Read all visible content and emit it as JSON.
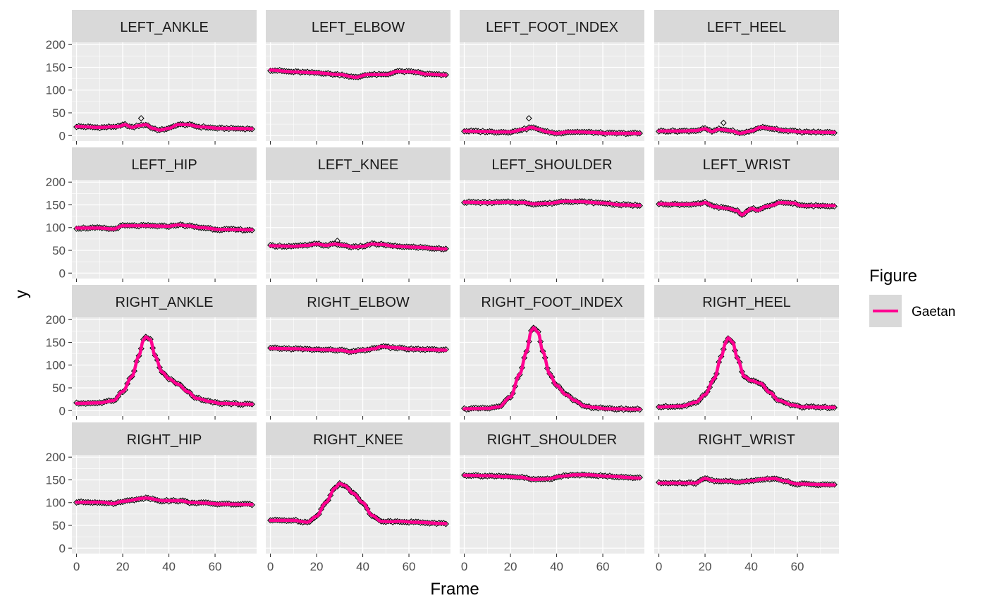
{
  "chart_data": {
    "type": "line",
    "xlabel": "Frame",
    "ylabel": "y",
    "xlim": [
      -2,
      78
    ],
    "ylim": [
      -12,
      205
    ],
    "x_ticks": [
      0,
      20,
      40,
      60
    ],
    "x_tick_labels": [
      "0",
      "20",
      "40",
      "60"
    ],
    "y_ticks": [
      0,
      50,
      100,
      150,
      200
    ],
    "y_tick_labels": [
      "0",
      "50",
      "100",
      "150",
      "200"
    ],
    "grid": true,
    "legend": {
      "title": "Figure",
      "position": "right",
      "entries": [
        {
          "label": "Gaetan",
          "color": "#ff0090"
        }
      ]
    },
    "colors": {
      "line": "#ff0090",
      "points": "#000000",
      "panel_bg": "#ebebeb",
      "strip_bg": "#d9d9d9",
      "grid": "#ffffff"
    },
    "point_shape": "open-diamond",
    "frames": {
      "start": 0,
      "end": 76,
      "step": 1
    },
    "panels": [
      {
        "name": "LEFT_ANKLE",
        "knots": [
          [
            0,
            20
          ],
          [
            10,
            18
          ],
          [
            18,
            20
          ],
          [
            21,
            24
          ],
          [
            24,
            18
          ],
          [
            27,
            22
          ],
          [
            30,
            24
          ],
          [
            33,
            16
          ],
          [
            36,
            12
          ],
          [
            40,
            16
          ],
          [
            44,
            24
          ],
          [
            48,
            24
          ],
          [
            54,
            19
          ],
          [
            62,
            16
          ],
          [
            76,
            15
          ]
        ],
        "outliers": [
          [
            28,
            38
          ]
        ]
      },
      {
        "name": "LEFT_ELBOW",
        "knots": [
          [
            0,
            144
          ],
          [
            10,
            140
          ],
          [
            20,
            138
          ],
          [
            30,
            134
          ],
          [
            37,
            128
          ],
          [
            42,
            134
          ],
          [
            50,
            134
          ],
          [
            55,
            141
          ],
          [
            62,
            140
          ],
          [
            68,
            135
          ],
          [
            76,
            133
          ]
        ],
        "outliers": []
      },
      {
        "name": "LEFT_FOOT_INDEX",
        "knots": [
          [
            0,
            10
          ],
          [
            8,
            9
          ],
          [
            14,
            8
          ],
          [
            20,
            8
          ],
          [
            26,
            14
          ],
          [
            29,
            18
          ],
          [
            32,
            14
          ],
          [
            36,
            8
          ],
          [
            40,
            5
          ],
          [
            45,
            8
          ],
          [
            50,
            8
          ],
          [
            55,
            7
          ],
          [
            62,
            5
          ],
          [
            76,
            5
          ]
        ],
        "outliers": [
          [
            28,
            38
          ]
        ]
      },
      {
        "name": "LEFT_HEEL",
        "knots": [
          [
            0,
            10
          ],
          [
            10,
            10
          ],
          [
            16,
            11
          ],
          [
            20,
            15
          ],
          [
            23,
            9
          ],
          [
            26,
            14
          ],
          [
            29,
            12
          ],
          [
            32,
            10
          ],
          [
            35,
            5
          ],
          [
            40,
            10
          ],
          [
            44,
            18
          ],
          [
            48,
            16
          ],
          [
            55,
            11
          ],
          [
            62,
            8
          ],
          [
            76,
            7
          ]
        ],
        "outliers": [
          [
            28,
            28
          ]
        ]
      },
      {
        "name": "LEFT_HIP",
        "knots": [
          [
            0,
            99
          ],
          [
            10,
            99
          ],
          [
            16,
            97
          ],
          [
            20,
            104
          ],
          [
            30,
            104
          ],
          [
            40,
            103
          ],
          [
            44,
            106
          ],
          [
            48,
            104
          ],
          [
            54,
            100
          ],
          [
            62,
            96
          ],
          [
            76,
            95
          ]
        ],
        "outliers": []
      },
      {
        "name": "LEFT_KNEE",
        "knots": [
          [
            0,
            60
          ],
          [
            10,
            59
          ],
          [
            16,
            61
          ],
          [
            20,
            64
          ],
          [
            24,
            61
          ],
          [
            28,
            64
          ],
          [
            32,
            61
          ],
          [
            36,
            57
          ],
          [
            40,
            59
          ],
          [
            44,
            64
          ],
          [
            48,
            63
          ],
          [
            54,
            59
          ],
          [
            62,
            57
          ],
          [
            76,
            53
          ]
        ],
        "outliers": [
          [
            29,
            71
          ]
        ]
      },
      {
        "name": "LEFT_SHOULDER",
        "knots": [
          [
            0,
            156
          ],
          [
            10,
            155
          ],
          [
            20,
            156
          ],
          [
            26,
            155
          ],
          [
            30,
            152
          ],
          [
            36,
            153
          ],
          [
            44,
            158
          ],
          [
            50,
            157
          ],
          [
            60,
            154
          ],
          [
            68,
            150
          ],
          [
            76,
            149
          ]
        ],
        "outliers": []
      },
      {
        "name": "LEFT_WRIST",
        "knots": [
          [
            0,
            152
          ],
          [
            10,
            151
          ],
          [
            18,
            152
          ],
          [
            20,
            155
          ],
          [
            24,
            146
          ],
          [
            30,
            142
          ],
          [
            34,
            137
          ],
          [
            36,
            128
          ],
          [
            38,
            135
          ],
          [
            40,
            142
          ],
          [
            43,
            138
          ],
          [
            46,
            146
          ],
          [
            50,
            150
          ],
          [
            52,
            155
          ],
          [
            58,
            154
          ],
          [
            62,
            148
          ],
          [
            76,
            148
          ]
        ],
        "outliers": []
      },
      {
        "name": "RIGHT_ANKLE",
        "knots": [
          [
            0,
            16
          ],
          [
            10,
            17
          ],
          [
            16,
            22
          ],
          [
            20,
            42
          ],
          [
            24,
            75
          ],
          [
            27,
            120
          ],
          [
            29,
            155
          ],
          [
            30,
            162
          ],
          [
            32,
            156
          ],
          [
            34,
            120
          ],
          [
            37,
            85
          ],
          [
            40,
            70
          ],
          [
            44,
            58
          ],
          [
            48,
            42
          ],
          [
            52,
            27
          ],
          [
            58,
            20
          ],
          [
            62,
            16
          ],
          [
            76,
            14
          ]
        ],
        "outliers": []
      },
      {
        "name": "RIGHT_ELBOW",
        "knots": [
          [
            0,
            137
          ],
          [
            10,
            136
          ],
          [
            20,
            134
          ],
          [
            30,
            133
          ],
          [
            35,
            129
          ],
          [
            40,
            133
          ],
          [
            45,
            136
          ],
          [
            48,
            141
          ],
          [
            54,
            138
          ],
          [
            62,
            135
          ],
          [
            76,
            133
          ]
        ],
        "outliers": []
      },
      {
        "name": "RIGHT_FOOT_INDEX",
        "knots": [
          [
            0,
            4
          ],
          [
            10,
            5
          ],
          [
            15,
            8
          ],
          [
            20,
            30
          ],
          [
            24,
            80
          ],
          [
            27,
            130
          ],
          [
            29,
            175
          ],
          [
            30,
            182
          ],
          [
            32,
            172
          ],
          [
            34,
            130
          ],
          [
            37,
            80
          ],
          [
            40,
            55
          ],
          [
            44,
            35
          ],
          [
            48,
            22
          ],
          [
            52,
            10
          ],
          [
            56,
            7
          ],
          [
            62,
            4
          ],
          [
            76,
            3
          ]
        ],
        "outliers": []
      },
      {
        "name": "RIGHT_HEEL",
        "knots": [
          [
            0,
            8
          ],
          [
            10,
            10
          ],
          [
            16,
            18
          ],
          [
            20,
            35
          ],
          [
            24,
            70
          ],
          [
            27,
            118
          ],
          [
            29,
            150
          ],
          [
            30,
            160
          ],
          [
            32,
            150
          ],
          [
            34,
            115
          ],
          [
            37,
            75
          ],
          [
            40,
            66
          ],
          [
            44,
            60
          ],
          [
            48,
            40
          ],
          [
            52,
            22
          ],
          [
            58,
            12
          ],
          [
            62,
            8
          ],
          [
            76,
            7
          ]
        ],
        "outliers": []
      },
      {
        "name": "RIGHT_HIP",
        "knots": [
          [
            0,
            101
          ],
          [
            10,
            101
          ],
          [
            16,
            98
          ],
          [
            20,
            103
          ],
          [
            30,
            110
          ],
          [
            38,
            104
          ],
          [
            45,
            104
          ],
          [
            50,
            100
          ],
          [
            56,
            99
          ],
          [
            62,
            97
          ],
          [
            76,
            96
          ]
        ],
        "outliers": []
      },
      {
        "name": "RIGHT_KNEE",
        "knots": [
          [
            0,
            61
          ],
          [
            10,
            61
          ],
          [
            16,
            57
          ],
          [
            20,
            70
          ],
          [
            24,
            100
          ],
          [
            28,
            132
          ],
          [
            30,
            142
          ],
          [
            32,
            138
          ],
          [
            36,
            120
          ],
          [
            40,
            100
          ],
          [
            44,
            72
          ],
          [
            48,
            59
          ],
          [
            52,
            58
          ],
          [
            56,
            59
          ],
          [
            62,
            57
          ],
          [
            76,
            54
          ]
        ],
        "outliers": []
      },
      {
        "name": "RIGHT_SHOULDER",
        "knots": [
          [
            0,
            160
          ],
          [
            10,
            159
          ],
          [
            18,
            157
          ],
          [
            24,
            156
          ],
          [
            30,
            151
          ],
          [
            36,
            152
          ],
          [
            42,
            158
          ],
          [
            48,
            161
          ],
          [
            54,
            161
          ],
          [
            62,
            158
          ],
          [
            76,
            154
          ]
        ],
        "outliers": []
      },
      {
        "name": "RIGHT_WRIST",
        "knots": [
          [
            0,
            143
          ],
          [
            10,
            143
          ],
          [
            16,
            143
          ],
          [
            20,
            153
          ],
          [
            24,
            148
          ],
          [
            30,
            147
          ],
          [
            34,
            145
          ],
          [
            40,
            148
          ],
          [
            46,
            152
          ],
          [
            50,
            153
          ],
          [
            54,
            148
          ],
          [
            60,
            141
          ],
          [
            76,
            139
          ]
        ],
        "outliers": []
      }
    ]
  }
}
